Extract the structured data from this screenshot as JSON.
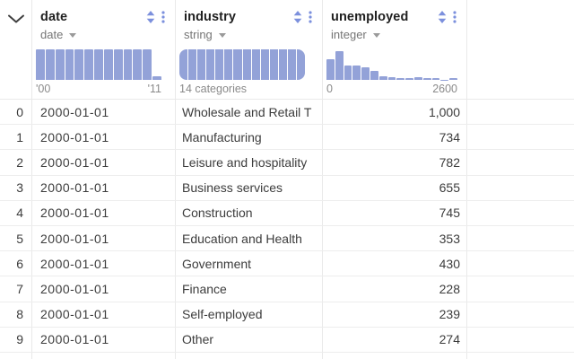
{
  "colors": {
    "bar_fill": "#93a2d8",
    "accent_icon": "#7c90dd",
    "header_text": "#1f1f1f",
    "muted_text": "#757575",
    "axis_text": "#8a8a8a",
    "index_text": "#b9b9b9",
    "cell_text": "#3c3c3c",
    "grid_line": "#e9e9e9"
  },
  "icons": {
    "collapse": "chevron-down",
    "sort": "sort-arrows-up-down",
    "menu": "vertical-ellipsis",
    "type_caret": "caret-down"
  },
  "header": {
    "columns": [
      {
        "name": "date",
        "type": "date",
        "axis_left": "'00",
        "axis_right": "'11",
        "hist_type": "bars",
        "hist_heights": [
          1,
          1,
          1,
          1,
          1,
          1,
          1,
          1,
          1,
          1,
          1,
          1,
          0.12
        ]
      },
      {
        "name": "industry",
        "type": "string",
        "axis_left": "14 categories",
        "axis_right": "",
        "hist_type": "capsule",
        "hist_segments": 14
      },
      {
        "name": "unemployed",
        "type": "integer",
        "axis_left": "0",
        "axis_right": "2600",
        "hist_type": "bars",
        "hist_heights": [
          0.68,
          0.95,
          0.46,
          0.48,
          0.41,
          0.29,
          0.13,
          0.08,
          0.06,
          0.06,
          0.08,
          0.06,
          0.05,
          0.01,
          0.05
        ]
      }
    ]
  },
  "rows": [
    {
      "index": "0",
      "date": "2000-01-01",
      "industry": "Wholesale and Retail T",
      "unemployed": "1,000"
    },
    {
      "index": "1",
      "date": "2000-01-01",
      "industry": "Manufacturing",
      "unemployed": "734"
    },
    {
      "index": "2",
      "date": "2000-01-01",
      "industry": "Leisure and hospitality",
      "unemployed": "782"
    },
    {
      "index": "3",
      "date": "2000-01-01",
      "industry": "Business services",
      "unemployed": "655"
    },
    {
      "index": "4",
      "date": "2000-01-01",
      "industry": "Construction",
      "unemployed": "745"
    },
    {
      "index": "5",
      "date": "2000-01-01",
      "industry": "Education and Health",
      "unemployed": "353"
    },
    {
      "index": "6",
      "date": "2000-01-01",
      "industry": "Government",
      "unemployed": "430"
    },
    {
      "index": "7",
      "date": "2000-01-01",
      "industry": "Finance",
      "unemployed": "228"
    },
    {
      "index": "8",
      "date": "2000-01-01",
      "industry": "Self-employed",
      "unemployed": "239"
    },
    {
      "index": "9",
      "date": "2000-01-01",
      "industry": "Other",
      "unemployed": "274"
    }
  ]
}
